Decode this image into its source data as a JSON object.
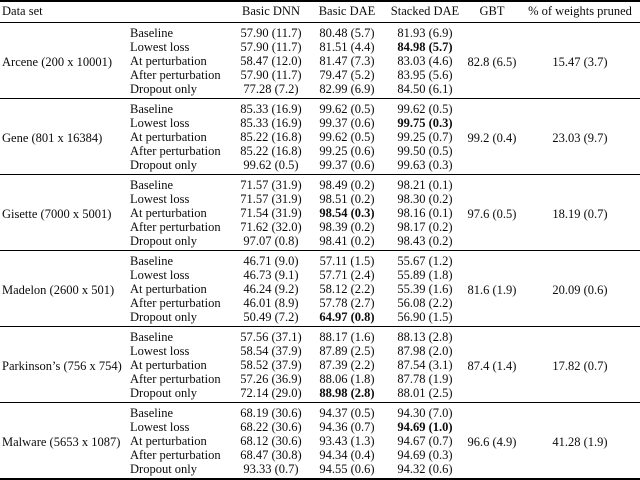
{
  "colors": {
    "background": "#ffffff",
    "text": "#0b0b0b",
    "rule": "#000000"
  },
  "table": {
    "headers": {
      "dataset": "Data set",
      "method": "",
      "basic_dnn": "Basic DNN",
      "basic_dae": "Basic DAE",
      "stacked_dae": "Stacked DAE",
      "gbt": "GBT",
      "pruned": "% of weights pruned"
    },
    "sections": [
      {
        "dataset": "Arcene (200 x 10001)",
        "gbt": "82.8 (6.5)",
        "pruned": "15.47 (3.7)",
        "rows": [
          {
            "method": "Baseline",
            "values": [
              "57.90 (11.7)",
              "80.48 (5.7)",
              "81.93 (6.9)"
            ],
            "bold": []
          },
          {
            "method": "Lowest loss",
            "values": [
              "57.90 (11.7)",
              "81.51 (4.4)",
              "84.98 (5.7)"
            ],
            "bold": [
              2
            ]
          },
          {
            "method": "At perturbation",
            "values": [
              "58.47 (12.0)",
              "81.47 (7.3)",
              "83.03 (4.6)"
            ],
            "bold": []
          },
          {
            "method": "After perturbation",
            "values": [
              "57.90 (11.7)",
              "79.47 (5.2)",
              "83.95 (5.6)"
            ],
            "bold": []
          },
          {
            "method": "Dropout only",
            "values": [
              "77.28 (7.2)",
              "82.99 (6.9)",
              "84.50 (6.1)"
            ],
            "bold": []
          }
        ]
      },
      {
        "dataset": "Gene (801 x 16384)",
        "gbt": "99.2 (0.4)",
        "pruned": "23.03 (9.7)",
        "rows": [
          {
            "method": "Baseline",
            "values": [
              "85.33 (16.9)",
              "99.62 (0.5)",
              "99.62 (0.5)"
            ],
            "bold": []
          },
          {
            "method": "Lowest loss",
            "values": [
              "85.33 (16.9)",
              "99.37 (0.6)",
              "99.75 (0.3)"
            ],
            "bold": [
              2
            ]
          },
          {
            "method": "At perturbation",
            "values": [
              "85.22 (16.8)",
              "99.62 (0.5)",
              "99.25 (0.7)"
            ],
            "bold": []
          },
          {
            "method": "After perturbation",
            "values": [
              "85.22 (16.8)",
              "99.25 (0.6)",
              "99.50 (0.5)"
            ],
            "bold": []
          },
          {
            "method": "Dropout only",
            "values": [
              "99.62 (0.5)",
              "99.37 (0.6)",
              "99.63 (0.3)"
            ],
            "bold": []
          }
        ]
      },
      {
        "dataset": "Gisette (7000 x 5001)",
        "gbt": "97.6 (0.5)",
        "pruned": "18.19 (0.7)",
        "rows": [
          {
            "method": "Baseline",
            "values": [
              "71.57 (31.9)",
              "98.49 (0.2)",
              "98.21 (0.1)"
            ],
            "bold": []
          },
          {
            "method": "Lowest loss",
            "values": [
              "71.57 (31.9)",
              "98.51 (0.2)",
              "98.30 (0.2)"
            ],
            "bold": []
          },
          {
            "method": "At perturbation",
            "values": [
              "71.54 (31.9)",
              "98.54 (0.3)",
              "98.16 (0.1)"
            ],
            "bold": [
              1
            ]
          },
          {
            "method": "After perturbation",
            "values": [
              "71.62 (32.0)",
              "98.39 (0.2)",
              "98.17 (0.2)"
            ],
            "bold": []
          },
          {
            "method": "Dropout only",
            "values": [
              "97.07 (0.8)",
              "98.41 (0.2)",
              "98.43 (0.2)"
            ],
            "bold": []
          }
        ]
      },
      {
        "dataset": "Madelon (2600 x 501)",
        "gbt": "81.6 (1.9)",
        "pruned": "20.09 (0.6)",
        "rows": [
          {
            "method": "Baseline",
            "values": [
              "46.71 (9.0)",
              "57.11 (1.5)",
              "55.67 (1.2)"
            ],
            "bold": []
          },
          {
            "method": "Lowest loss",
            "values": [
              "46.73 (9.1)",
              "57.71 (2.4)",
              "55.89 (1.8)"
            ],
            "bold": []
          },
          {
            "method": "At perturbation",
            "values": [
              "46.24 (9.2)",
              "58.12 (2.2)",
              "55.39 (1.6)"
            ],
            "bold": []
          },
          {
            "method": "After perturbation",
            "values": [
              "46.01 (8.9)",
              "57.78 (2.7)",
              "56.08 (2.2)"
            ],
            "bold": []
          },
          {
            "method": "Dropout only",
            "values": [
              "50.49 (7.2)",
              "64.97 (0.8)",
              "56.90 (1.5)"
            ],
            "bold": [
              1
            ]
          }
        ]
      },
      {
        "dataset": "Parkinson’s (756 x 754)",
        "gbt": "87.4 (1.4)",
        "pruned": "17.82 (0.7)",
        "rows": [
          {
            "method": "Baseline",
            "values": [
              "57.56 (37.1)",
              "88.17 (1.6)",
              "88.13 (2.8)"
            ],
            "bold": []
          },
          {
            "method": "Lowest loss",
            "values": [
              "58.54 (37.9)",
              "87.89 (2.5)",
              "87.98 (2.0)"
            ],
            "bold": []
          },
          {
            "method": "At perturbation",
            "values": [
              "58.52 (37.9)",
              "87.39 (2.2)",
              "87.54 (3.1)"
            ],
            "bold": []
          },
          {
            "method": "After perturbation",
            "values": [
              "57.26 (36.9)",
              "88.06 (1.8)",
              "87.78 (1.9)"
            ],
            "bold": []
          },
          {
            "method": "Dropout only",
            "values": [
              "72.14 (29.0)",
              "88.98 (2.8)",
              "88.01 (2.5)"
            ],
            "bold": [
              1
            ]
          }
        ]
      },
      {
        "dataset": "Malware (5653 x 1087)",
        "gbt": "96.6 (4.9)",
        "pruned": "41.28 (1.9)",
        "rows": [
          {
            "method": "Baseline",
            "values": [
              "68.19 (30.6)",
              "94.37 (0.5)",
              "94.30 (7.0)"
            ],
            "bold": []
          },
          {
            "method": "Lowest loss",
            "values": [
              "68.22 (30.6)",
              "94.36 (0.7)",
              "94.69 (1.0)"
            ],
            "bold": [
              2
            ]
          },
          {
            "method": "At perturbation",
            "values": [
              "68.12 (30.6)",
              "93.43 (1.3)",
              "94.67 (0.7)"
            ],
            "bold": []
          },
          {
            "method": "After perturbation",
            "values": [
              "68.47 (30.8)",
              "94.34 (0.4)",
              "94.69 (0.3)"
            ],
            "bold": []
          },
          {
            "method": "Dropout only",
            "values": [
              "93.33 (0.7)",
              "94.55 (0.6)",
              "94.32 (0.6)"
            ],
            "bold": []
          }
        ]
      }
    ]
  }
}
